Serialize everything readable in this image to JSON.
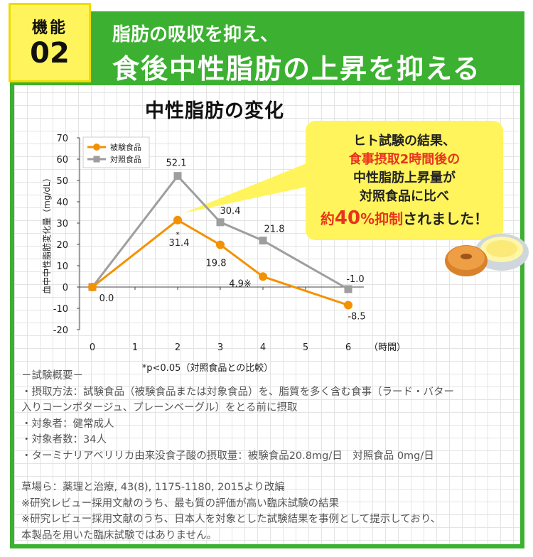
{
  "header": {
    "badge_label": "機能",
    "badge_number": "02",
    "subtitle": "脂肪の吸収を抑え、",
    "title": "食後中性脂肪の上昇を抑える"
  },
  "callout": {
    "line1": "ヒト試験の結果、",
    "line2": "食事摂取2時間後の",
    "line3": "中性脂肪上昇量が",
    "line4": "対照食品に比べ",
    "line5_a": "約",
    "line5_b": "40",
    "line5_c": "%抑制",
    "line5_d": "されました！"
  },
  "colors": {
    "green": "#3cb131",
    "badge_yellow": "#fff45c",
    "test_series": "#f39200",
    "control_series": "#9e9e9e",
    "highlight_red": "#e8341c"
  },
  "chart_data": {
    "type": "line",
    "title": "中性脂肪の変化",
    "ylabel": "血中中性脂肪変化量（mg/dL）",
    "xlabel": "（時間）",
    "ylim": [
      -20,
      70
    ],
    "xlim": [
      0,
      6
    ],
    "yticks": [
      -20,
      -10,
      0,
      10,
      20,
      30,
      40,
      50,
      60,
      70
    ],
    "xticks": [
      0,
      1,
      2,
      3,
      4,
      5,
      6
    ],
    "legend_position": "top-left",
    "footnote": "*p<0.05（対照食品との比較）",
    "series": [
      {
        "name": "被験食品",
        "color": "#f39200",
        "marker": "circle",
        "x": [
          0,
          2,
          3,
          4,
          6
        ],
        "y": [
          0,
          31.4,
          19.8,
          4.9,
          -8.5
        ],
        "labels": [
          "0.0",
          "31.4",
          "19.8",
          "4.9※",
          "-8.5"
        ]
      },
      {
        "name": "対照食品",
        "color": "#9e9e9e",
        "marker": "square",
        "x": [
          0,
          2,
          3,
          4,
          6
        ],
        "y": [
          0,
          52.1,
          30.4,
          21.8,
          -1.0
        ],
        "labels": [
          "",
          "52.1",
          "30.4",
          "21.8",
          "-1.0"
        ]
      }
    ],
    "significance_mark": "*"
  },
  "notes": {
    "overview_title": "－試験概要－",
    "method": "・摂取方法：試験食品（被験食品または対象食品）を、脂質を多く含む食事（ラード・バター",
    "method_cont": "入りコーンポタージュ、プレーンベーグル）をとる前に摂取",
    "subjects": "・対象者：健常成人",
    "count": "・対象者数：34人",
    "intake": "・ターミナリアベリリカ由来没食子酸の摂取量：被験食品20.8mg/日　対照食品 0mg/日",
    "source": "草場ら：薬理と治療, 43(8), 1175-1180, 2015より改編",
    "ref1": "※研究レビュー採用文献のうち、最も質の評価が高い臨床試験の結果",
    "ref2": "※研究レビュー採用文献のうち、日本人を対象とした試験結果を事例として提示しており、",
    "ref2_cont": "本製品を用いた臨床試験ではありません。"
  }
}
